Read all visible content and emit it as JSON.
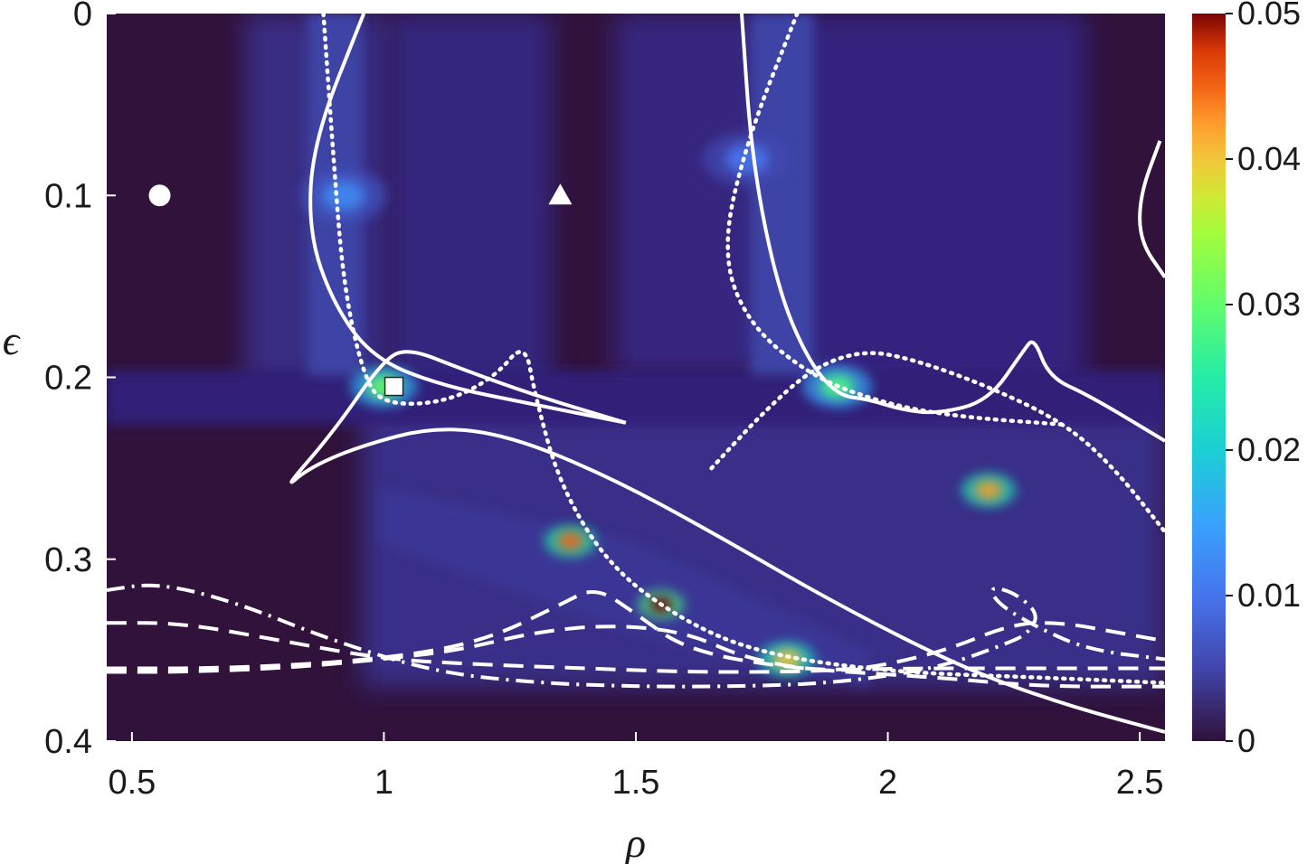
{
  "chart_data": {
    "type": "heatmap",
    "title": "",
    "xlabel": "ρ",
    "ylabel": "ϵ",
    "xlim": [
      0.45,
      2.55
    ],
    "ylim": [
      0.4,
      0
    ],
    "x_ticks": [
      {
        "value": 0.5,
        "label": "0.5"
      },
      {
        "value": 1,
        "label": "1"
      },
      {
        "value": 1.5,
        "label": "1.5"
      },
      {
        "value": 2,
        "label": "2"
      },
      {
        "value": 2.5,
        "label": "2.5"
      }
    ],
    "y_ticks": [
      {
        "value": 0,
        "label": "0"
      },
      {
        "value": 0.1,
        "label": "0.1"
      },
      {
        "value": 0.2,
        "label": "0.2"
      },
      {
        "value": 0.3,
        "label": "0.3"
      },
      {
        "value": 0.4,
        "label": "0.4"
      }
    ],
    "colorbar": {
      "range": [
        0,
        0.05
      ],
      "colormap": "turbo",
      "ticks": [
        {
          "value": 0,
          "label": "0"
        },
        {
          "value": 0.01,
          "label": "0.01"
        },
        {
          "value": 0.02,
          "label": "0.02"
        },
        {
          "value": 0.03,
          "label": "0.03"
        },
        {
          "value": 0.04,
          "label": "0.04"
        },
        {
          "value": 0.05,
          "label": "0.05"
        }
      ]
    },
    "colors": {
      "background_low": "#30123b",
      "overlay": "#ffffff"
    },
    "hotspots": [
      {
        "x": 0.92,
        "y": 0.1,
        "value": 0.012
      },
      {
        "x": 1.0,
        "y": 0.205,
        "value": 0.03
      },
      {
        "x": 1.72,
        "y": 0.08,
        "value": 0.01
      },
      {
        "x": 1.9,
        "y": 0.205,
        "value": 0.028
      },
      {
        "x": 1.55,
        "y": 0.325,
        "value": 0.05
      },
      {
        "x": 1.8,
        "y": 0.355,
        "value": 0.04
      },
      {
        "x": 1.37,
        "y": 0.29,
        "value": 0.045
      },
      {
        "x": 2.2,
        "y": 0.262,
        "value": 0.042
      }
    ],
    "markers": [
      {
        "shape": "circle",
        "x": 0.555,
        "y": 0.1
      },
      {
        "shape": "triangle",
        "x": 1.35,
        "y": 0.1
      },
      {
        "shape": "square",
        "x": 1.02,
        "y": 0.205
      }
    ],
    "curves": [
      {
        "style": "solid",
        "points": [
          [
            0.96,
            0
          ],
          [
            0.86,
            0.07
          ],
          [
            0.85,
            0.12
          ],
          [
            0.9,
            0.16
          ],
          [
            0.98,
            0.19
          ],
          [
            1.12,
            0.205
          ],
          [
            1.3,
            0.215
          ],
          [
            1.48,
            0.225
          ]
        ]
      },
      {
        "style": "solid",
        "points": [
          [
            1.48,
            0.225
          ],
          [
            1.3,
            0.21
          ],
          [
            1.15,
            0.195
          ],
          [
            1.05,
            0.184
          ],
          [
            1.0,
            0.19
          ],
          [
            0.9,
            0.23
          ],
          [
            0.8,
            0.262
          ],
          [
            0.85,
            0.25
          ],
          [
            0.95,
            0.238
          ],
          [
            1.1,
            0.227
          ],
          [
            1.25,
            0.232
          ],
          [
            1.45,
            0.255
          ],
          [
            1.65,
            0.285
          ],
          [
            1.9,
            0.325
          ],
          [
            2.15,
            0.36
          ],
          [
            2.35,
            0.38
          ],
          [
            2.55,
            0.395
          ]
        ]
      },
      {
        "style": "dotted",
        "points": [
          [
            0.88,
            0
          ],
          [
            0.9,
            0.08
          ],
          [
            0.92,
            0.15
          ],
          [
            0.96,
            0.2
          ],
          [
            1.0,
            0.215
          ],
          [
            1.12,
            0.214
          ],
          [
            1.22,
            0.2
          ],
          [
            1.28,
            0.18
          ],
          [
            1.3,
            0.21
          ],
          [
            1.35,
            0.26
          ],
          [
            1.45,
            0.305
          ],
          [
            1.6,
            0.335
          ],
          [
            1.75,
            0.352
          ],
          [
            2.0,
            0.362
          ],
          [
            2.3,
            0.365
          ],
          [
            2.55,
            0.368
          ]
        ]
      },
      {
        "style": "solid",
        "points": [
          [
            1.71,
            0
          ],
          [
            1.73,
            0.08
          ],
          [
            1.78,
            0.15
          ],
          [
            1.84,
            0.19
          ],
          [
            1.9,
            0.21
          ],
          [
            1.96,
            0.212
          ],
          [
            2.03,
            0.218
          ],
          [
            2.1,
            0.22
          ],
          [
            2.2,
            0.213
          ],
          [
            2.27,
            0.185
          ],
          [
            2.29,
            0.178
          ],
          [
            2.32,
            0.2
          ],
          [
            2.4,
            0.21
          ],
          [
            2.55,
            0.235
          ]
        ]
      },
      {
        "style": "dotted",
        "points": [
          [
            1.82,
            0
          ],
          [
            1.72,
            0.07
          ],
          [
            1.67,
            0.13
          ],
          [
            1.72,
            0.17
          ],
          [
            1.85,
            0.2
          ],
          [
            2.0,
            0.215
          ],
          [
            2.15,
            0.222
          ],
          [
            2.35,
            0.226
          ]
        ]
      },
      {
        "style": "dotted",
        "points": [
          [
            1.65,
            0.25
          ],
          [
            1.75,
            0.22
          ],
          [
            1.85,
            0.195
          ],
          [
            1.95,
            0.185
          ],
          [
            2.05,
            0.19
          ],
          [
            2.2,
            0.205
          ],
          [
            2.35,
            0.225
          ],
          [
            2.45,
            0.25
          ],
          [
            2.55,
            0.285
          ]
        ]
      },
      {
        "style": "solid",
        "points": [
          [
            2.54,
            0.07
          ],
          [
            2.5,
            0.1
          ],
          [
            2.5,
            0.125
          ],
          [
            2.55,
            0.145
          ]
        ]
      },
      {
        "style": "dashed",
        "points": [
          [
            0.45,
            0.335
          ],
          [
            0.6,
            0.335
          ],
          [
            0.8,
            0.345
          ],
          [
            1.0,
            0.355
          ],
          [
            1.2,
            0.358
          ],
          [
            1.4,
            0.36
          ],
          [
            1.6,
            0.362
          ],
          [
            1.8,
            0.362
          ],
          [
            2.0,
            0.36
          ],
          [
            2.3,
            0.36
          ],
          [
            2.55,
            0.36
          ]
        ]
      },
      {
        "style": "dashed",
        "points": [
          [
            0.45,
            0.362
          ],
          [
            0.6,
            0.362
          ],
          [
            0.8,
            0.36
          ],
          [
            1.0,
            0.355
          ],
          [
            1.15,
            0.35
          ],
          [
            1.3,
            0.34
          ],
          [
            1.45,
            0.336
          ],
          [
            1.6,
            0.34
          ],
          [
            1.72,
            0.355
          ],
          [
            1.9,
            0.363
          ],
          [
            2.1,
            0.352
          ],
          [
            2.25,
            0.335
          ],
          [
            2.35,
            0.335
          ],
          [
            2.45,
            0.34
          ],
          [
            2.55,
            0.345
          ]
        ]
      },
      {
        "style": "dashed",
        "points": [
          [
            0.45,
            0.36
          ],
          [
            0.7,
            0.36
          ],
          [
            1.0,
            0.355
          ],
          [
            1.2,
            0.345
          ],
          [
            1.35,
            0.325
          ],
          [
            1.42,
            0.315
          ],
          [
            1.5,
            0.33
          ],
          [
            1.6,
            0.35
          ],
          [
            1.8,
            0.36
          ],
          [
            2.1,
            0.365
          ],
          [
            2.3,
            0.37
          ],
          [
            2.55,
            0.37
          ]
        ]
      },
      {
        "style": "dashdot",
        "points": [
          [
            0.45,
            0.317
          ],
          [
            0.55,
            0.313
          ],
          [
            0.7,
            0.323
          ],
          [
            0.9,
            0.345
          ],
          [
            1.1,
            0.362
          ],
          [
            1.3,
            0.368
          ],
          [
            1.5,
            0.37
          ],
          [
            1.7,
            0.37
          ],
          [
            1.9,
            0.368
          ],
          [
            2.1,
            0.36
          ],
          [
            2.25,
            0.345
          ],
          [
            2.28,
            0.34
          ],
          [
            2.3,
            0.33
          ],
          [
            2.25,
            0.318
          ],
          [
            2.2,
            0.315
          ],
          [
            2.22,
            0.325
          ],
          [
            2.3,
            0.338
          ],
          [
            2.4,
            0.35
          ],
          [
            2.55,
            0.355
          ]
        ]
      }
    ]
  }
}
